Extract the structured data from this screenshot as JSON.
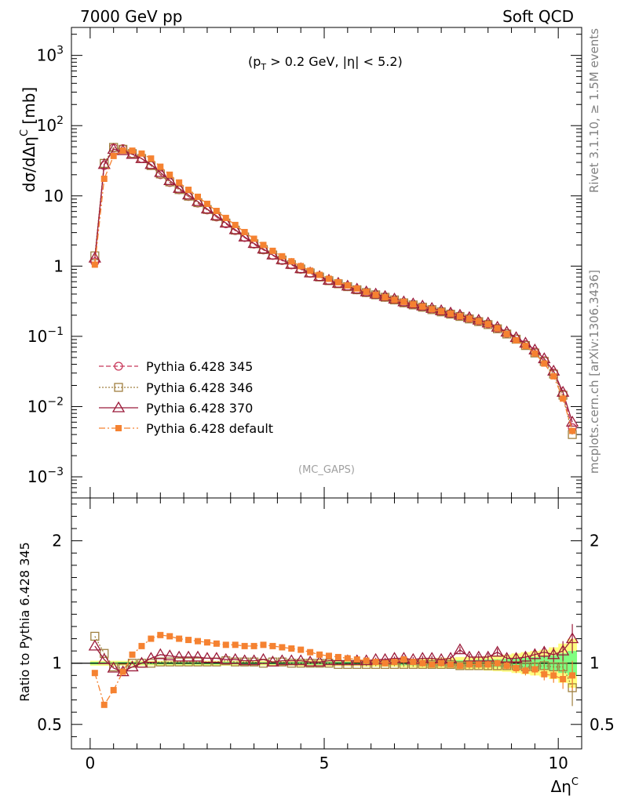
{
  "header": {
    "left": "7000 GeV pp",
    "right": "Soft QCD"
  },
  "side_text": {
    "rivet": "Rivet 3.1.10, ≥ 1.5M events",
    "mcplots": "mcplots.cern.ch [arXiv:1306.3436]"
  },
  "colors": {
    "s345": "#c8385a",
    "s346": "#a08040",
    "s370": "#9b1b3a",
    "sdef": "#f58231",
    "band_yellow": "#ffff80",
    "band_green": "#80ff80"
  },
  "chart_data": [
    {
      "type": "line",
      "title": "(p_T > 0.2 GeV, |η| < 5.2)",
      "title_parts": {
        "open": "(p",
        "sub": "T",
        "rest": " > 0.2 GeV, |η| < 5.2)"
      },
      "watermark": "(MC_GAPS)",
      "ylabel": "dσ/dΔη^C [mb]",
      "ylabel_parts": {
        "main": "dσ/dΔη",
        "sup": "C",
        "unit": " [mb]"
      },
      "yscale": "log",
      "ylim": [
        0.0005,
        2500
      ],
      "xlim": [
        -0.4,
        10.5
      ],
      "yticks": [
        {
          "v": 1000,
          "label": "10^3"
        },
        {
          "v": 100,
          "label": "10^2"
        },
        {
          "v": 10,
          "label": "10"
        },
        {
          "v": 1,
          "label": "1"
        },
        {
          "v": 0.1,
          "label": "10^-1"
        },
        {
          "v": 0.01,
          "label": "10^-2"
        },
        {
          "v": 0.001,
          "label": "10^-3"
        }
      ],
      "x": [
        0.1,
        0.3,
        0.5,
        0.7,
        0.9,
        1.1,
        1.3,
        1.5,
        1.7,
        1.9,
        2.1,
        2.3,
        2.5,
        2.7,
        2.9,
        3.1,
        3.3,
        3.5,
        3.7,
        3.9,
        4.1,
        4.3,
        4.5,
        4.7,
        4.9,
        5.1,
        5.3,
        5.5,
        5.7,
        5.9,
        6.1,
        6.3,
        6.5,
        6.7,
        6.9,
        7.1,
        7.3,
        7.5,
        7.7,
        7.9,
        8.1,
        8.3,
        8.5,
        8.7,
        8.9,
        9.1,
        9.3,
        9.5,
        9.7,
        9.9,
        10.1,
        10.3
      ],
      "series": [
        {
          "name": "Pythia 6.428 345",
          "key": "s345",
          "marker": "circle",
          "dash": "6,3",
          "values": [
            1.15,
            27,
            48,
            47,
            40,
            34,
            27,
            20,
            15.5,
            12.2,
            9.8,
            7.9,
            6.3,
            5.0,
            4.0,
            3.2,
            2.55,
            2.05,
            1.7,
            1.42,
            1.2,
            1.04,
            0.9,
            0.79,
            0.7,
            0.62,
            0.56,
            0.51,
            0.46,
            0.42,
            0.39,
            0.36,
            0.33,
            0.3,
            0.28,
            0.26,
            0.24,
            0.225,
            0.21,
            0.195,
            0.18,
            0.165,
            0.15,
            0.13,
            0.11,
            0.092,
            0.076,
            0.06,
            0.045,
            0.03,
            0.015,
            0.005
          ]
        },
        {
          "name": "Pythia 6.428 346",
          "key": "s346",
          "marker": "square",
          "dash": "2,2",
          "values": [
            1.4,
            29,
            49,
            46,
            40,
            34,
            27,
            20.5,
            15.8,
            12.3,
            9.9,
            8.0,
            6.4,
            5.1,
            4.1,
            3.25,
            2.6,
            2.08,
            1.72,
            1.44,
            1.22,
            1.05,
            0.91,
            0.8,
            0.7,
            0.62,
            0.56,
            0.51,
            0.46,
            0.42,
            0.39,
            0.36,
            0.33,
            0.3,
            0.28,
            0.26,
            0.24,
            0.223,
            0.207,
            0.192,
            0.177,
            0.162,
            0.147,
            0.128,
            0.108,
            0.091,
            0.074,
            0.058,
            0.044,
            0.029,
            0.0145,
            0.004
          ]
        },
        {
          "name": "Pythia 6.428 370",
          "key": "s370",
          "marker": "triangle",
          "dash": "",
          "values": [
            1.3,
            28,
            46,
            44,
            39,
            34,
            28,
            21.5,
            16.5,
            12.8,
            10.3,
            8.3,
            6.5,
            5.2,
            4.1,
            3.3,
            2.6,
            2.1,
            1.75,
            1.44,
            1.23,
            1.06,
            0.92,
            0.8,
            0.71,
            0.63,
            0.57,
            0.52,
            0.47,
            0.43,
            0.4,
            0.37,
            0.34,
            0.31,
            0.29,
            0.27,
            0.25,
            0.232,
            0.215,
            0.2,
            0.185,
            0.17,
            0.155,
            0.135,
            0.115,
            0.096,
            0.08,
            0.064,
            0.048,
            0.032,
            0.016,
            0.006
          ]
        },
        {
          "name": "Pythia 6.428 default",
          "key": "sdef",
          "marker": "fsquare",
          "dash": "8,3,2,3",
          "values": [
            1.05,
            17.5,
            37,
            44,
            44,
            40,
            34,
            26,
            20,
            15.5,
            12.2,
            9.7,
            7.7,
            6.1,
            4.85,
            3.85,
            3.05,
            2.45,
            2.0,
            1.65,
            1.38,
            1.17,
            1.0,
            0.86,
            0.75,
            0.66,
            0.59,
            0.53,
            0.48,
            0.43,
            0.39,
            0.36,
            0.33,
            0.31,
            0.285,
            0.265,
            0.243,
            0.227,
            0.21,
            0.193,
            0.178,
            0.164,
            0.149,
            0.13,
            0.108,
            0.088,
            0.073,
            0.057,
            0.041,
            0.027,
            0.013,
            0.0045
          ]
        }
      ]
    },
    {
      "type": "line",
      "ylabel": "Ratio to Pythia 6.428 345",
      "xlabel": "Δη^C",
      "xlabel_parts": {
        "main": "Δη",
        "sup": "C"
      },
      "ylim": [
        0.3,
        2.35
      ],
      "xlim": [
        -0.4,
        10.5
      ],
      "xticks": [
        {
          "v": 0,
          "label": "0"
        },
        {
          "v": 5,
          "label": "5"
        },
        {
          "v": 10,
          "label": "10"
        }
      ],
      "yticks": [
        {
          "v": 0.5,
          "label": "0.5"
        },
        {
          "v": 1,
          "label": "1"
        },
        {
          "v": 2,
          "label": "2"
        }
      ],
      "x": [
        0.1,
        0.3,
        0.5,
        0.7,
        0.9,
        1.1,
        1.3,
        1.5,
        1.7,
        1.9,
        2.1,
        2.3,
        2.5,
        2.7,
        2.9,
        3.1,
        3.3,
        3.5,
        3.7,
        3.9,
        4.1,
        4.3,
        4.5,
        4.7,
        4.9,
        5.1,
        5.3,
        5.5,
        5.7,
        5.9,
        6.1,
        6.3,
        6.5,
        6.7,
        6.9,
        7.1,
        7.3,
        7.5,
        7.7,
        7.9,
        8.1,
        8.3,
        8.5,
        8.7,
        8.9,
        9.1,
        9.3,
        9.5,
        9.7,
        9.9,
        10.1,
        10.3
      ],
      "band": {
        "yellow_half": [
          0.02,
          0.02,
          0.02,
          0.02,
          0.02,
          0.02,
          0.02,
          0.02,
          0.02,
          0.02,
          0.02,
          0.02,
          0.02,
          0.02,
          0.02,
          0.02,
          0.02,
          0.02,
          0.02,
          0.02,
          0.02,
          0.02,
          0.025,
          0.025,
          0.025,
          0.025,
          0.025,
          0.025,
          0.025,
          0.03,
          0.03,
          0.03,
          0.03,
          0.035,
          0.035,
          0.04,
          0.04,
          0.045,
          0.045,
          0.05,
          0.05,
          0.055,
          0.06,
          0.065,
          0.07,
          0.08,
          0.09,
          0.1,
          0.11,
          0.13,
          0.16,
          0.2
        ],
        "green_half": [
          0.01,
          0.01,
          0.01,
          0.01,
          0.01,
          0.01,
          0.01,
          0.01,
          0.01,
          0.01,
          0.01,
          0.01,
          0.01,
          0.01,
          0.01,
          0.01,
          0.01,
          0.01,
          0.01,
          0.01,
          0.01,
          0.01,
          0.012,
          0.012,
          0.012,
          0.012,
          0.012,
          0.012,
          0.012,
          0.015,
          0.015,
          0.015,
          0.015,
          0.018,
          0.018,
          0.02,
          0.02,
          0.022,
          0.022,
          0.025,
          0.025,
          0.028,
          0.03,
          0.032,
          0.035,
          0.04,
          0.045,
          0.05,
          0.055,
          0.065,
          0.08,
          0.1
        ]
      },
      "series": [
        {
          "name": "Pythia 6.428 346",
          "key": "s346",
          "marker": "square",
          "dash": "2,2",
          "values": [
            1.22,
            1.08,
            0.97,
            0.96,
            1.0,
            1.0,
            1.0,
            1.01,
            1.01,
            1.01,
            1.01,
            1.01,
            1.01,
            1.01,
            1.02,
            1.01,
            1.01,
            1.01,
            1.0,
            1.01,
            1.01,
            1.0,
            1.0,
            1.0,
            1.0,
            1.0,
            0.99,
            0.99,
            0.99,
            0.99,
            0.99,
            0.99,
            0.99,
            0.99,
            0.99,
            0.99,
            0.99,
            0.99,
            0.99,
            0.98,
            0.98,
            0.98,
            0.98,
            0.98,
            0.98,
            0.98,
            0.97,
            0.97,
            0.98,
            0.97,
            0.97,
            0.8
          ],
          "errors": [
            0.01,
            0.01,
            0.01,
            0.01,
            0.01,
            0.01,
            0.01,
            0.01,
            0.01,
            0.01,
            0.01,
            0.01,
            0.01,
            0.01,
            0.01,
            0.01,
            0.01,
            0.01,
            0.01,
            0.01,
            0.01,
            0.01,
            0.01,
            0.01,
            0.01,
            0.01,
            0.01,
            0.01,
            0.01,
            0.015,
            0.015,
            0.015,
            0.015,
            0.02,
            0.02,
            0.02,
            0.02,
            0.02,
            0.02,
            0.025,
            0.025,
            0.025,
            0.03,
            0.03,
            0.03,
            0.04,
            0.04,
            0.05,
            0.05,
            0.06,
            0.08,
            0.15
          ]
        },
        {
          "name": "Pythia 6.428 370",
          "key": "s370",
          "marker": "triangle",
          "dash": "",
          "values": [
            1.14,
            1.03,
            0.96,
            0.93,
            0.97,
            1.0,
            1.04,
            1.07,
            1.06,
            1.05,
            1.05,
            1.05,
            1.04,
            1.04,
            1.03,
            1.03,
            1.02,
            1.02,
            1.03,
            1.01,
            1.02,
            1.02,
            1.02,
            1.01,
            1.01,
            1.02,
            1.02,
            1.02,
            1.02,
            1.02,
            1.03,
            1.03,
            1.04,
            1.04,
            1.03,
            1.04,
            1.04,
            1.03,
            1.04,
            1.11,
            1.05,
            1.05,
            1.05,
            1.09,
            1.04,
            1.04,
            1.05,
            1.07,
            1.09,
            1.07,
            1.1,
            1.2
          ],
          "errors": [
            0.01,
            0.01,
            0.01,
            0.01,
            0.01,
            0.01,
            0.01,
            0.01,
            0.01,
            0.01,
            0.01,
            0.01,
            0.01,
            0.01,
            0.01,
            0.01,
            0.01,
            0.01,
            0.01,
            0.01,
            0.01,
            0.01,
            0.01,
            0.01,
            0.01,
            0.01,
            0.01,
            0.01,
            0.01,
            0.015,
            0.015,
            0.015,
            0.015,
            0.02,
            0.02,
            0.02,
            0.02,
            0.02,
            0.02,
            0.025,
            0.025,
            0.025,
            0.03,
            0.03,
            0.03,
            0.04,
            0.04,
            0.05,
            0.05,
            0.06,
            0.08,
            0.12
          ]
        },
        {
          "name": "Pythia 6.428 default",
          "key": "sdef",
          "marker": "fsquare",
          "dash": "8,3,2,3",
          "values": [
            0.92,
            0.66,
            0.78,
            0.93,
            1.07,
            1.14,
            1.2,
            1.23,
            1.22,
            1.2,
            1.19,
            1.18,
            1.17,
            1.16,
            1.15,
            1.15,
            1.14,
            1.14,
            1.15,
            1.14,
            1.13,
            1.12,
            1.11,
            1.09,
            1.07,
            1.06,
            1.05,
            1.04,
            1.03,
            1.02,
            1.01,
            1.0,
            1.01,
            1.03,
            1.01,
            1.0,
            0.99,
            1.0,
            0.99,
            0.98,
            0.99,
            0.99,
            0.99,
            1.0,
            0.98,
            0.96,
            0.94,
            0.95,
            0.91,
            0.9,
            0.87,
            0.9
          ],
          "errors": [
            0.01,
            0.01,
            0.01,
            0.01,
            0.01,
            0.01,
            0.01,
            0.01,
            0.01,
            0.01,
            0.01,
            0.01,
            0.01,
            0.01,
            0.01,
            0.01,
            0.01,
            0.01,
            0.01,
            0.01,
            0.01,
            0.01,
            0.01,
            0.01,
            0.01,
            0.01,
            0.01,
            0.01,
            0.01,
            0.015,
            0.015,
            0.015,
            0.015,
            0.02,
            0.02,
            0.02,
            0.02,
            0.02,
            0.02,
            0.025,
            0.025,
            0.025,
            0.03,
            0.03,
            0.03,
            0.04,
            0.04,
            0.05,
            0.05,
            0.06,
            0.08,
            0.12
          ]
        }
      ]
    }
  ]
}
